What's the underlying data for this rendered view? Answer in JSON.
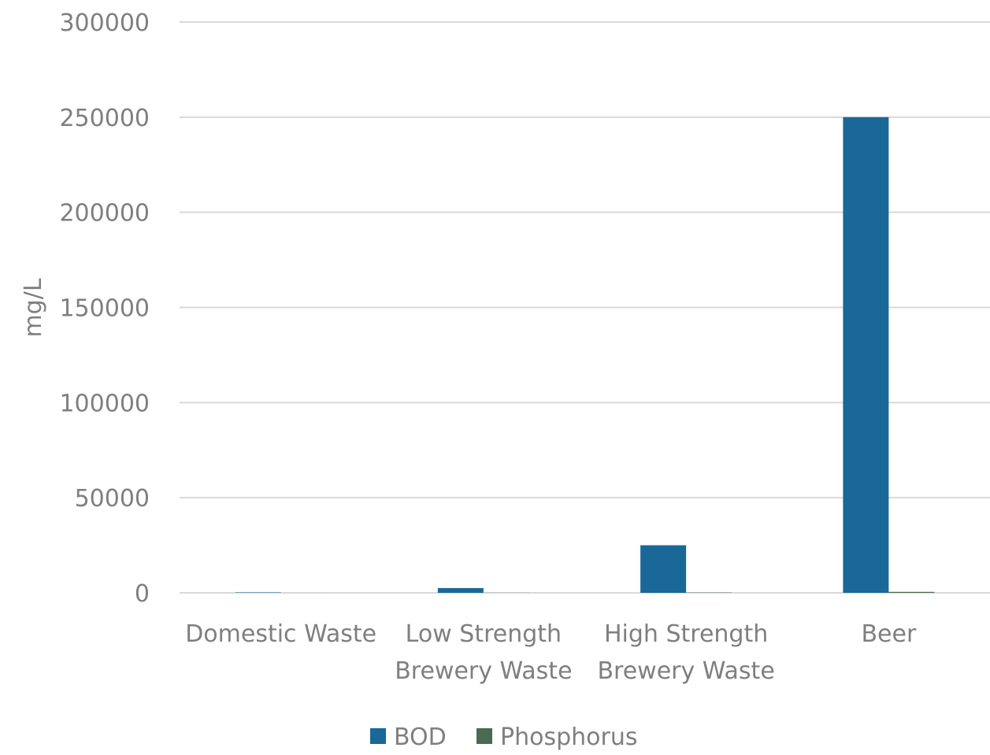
{
  "chart_data": {
    "type": "bar",
    "title": "",
    "xlabel": "",
    "ylabel": "mg/L",
    "categories": [
      [
        "Domestic Waste"
      ],
      [
        "Low Strength",
        "Brewery Waste"
      ],
      [
        "High Strength",
        "Brewery Waste"
      ],
      [
        "Beer"
      ]
    ],
    "series": [
      {
        "name": "BOD",
        "color": "#1a6898",
        "values": [
          200,
          2500,
          25000,
          250000
        ]
      },
      {
        "name": "Phosphorus",
        "color": "#4a6b50",
        "values": [
          7,
          50,
          150,
          500
        ]
      }
    ],
    "ylim": [
      0,
      300000
    ],
    "yticks": [
      0,
      50000,
      100000,
      150000,
      200000,
      250000,
      300000
    ],
    "ytick_labels": [
      "0",
      "50000",
      "100000",
      "150000",
      "200000",
      "250000",
      "300000"
    ],
    "grid": true,
    "legend": "bottom",
    "colors": {
      "grid": "#d9d9d9",
      "text": "#7f7f7f"
    }
  }
}
